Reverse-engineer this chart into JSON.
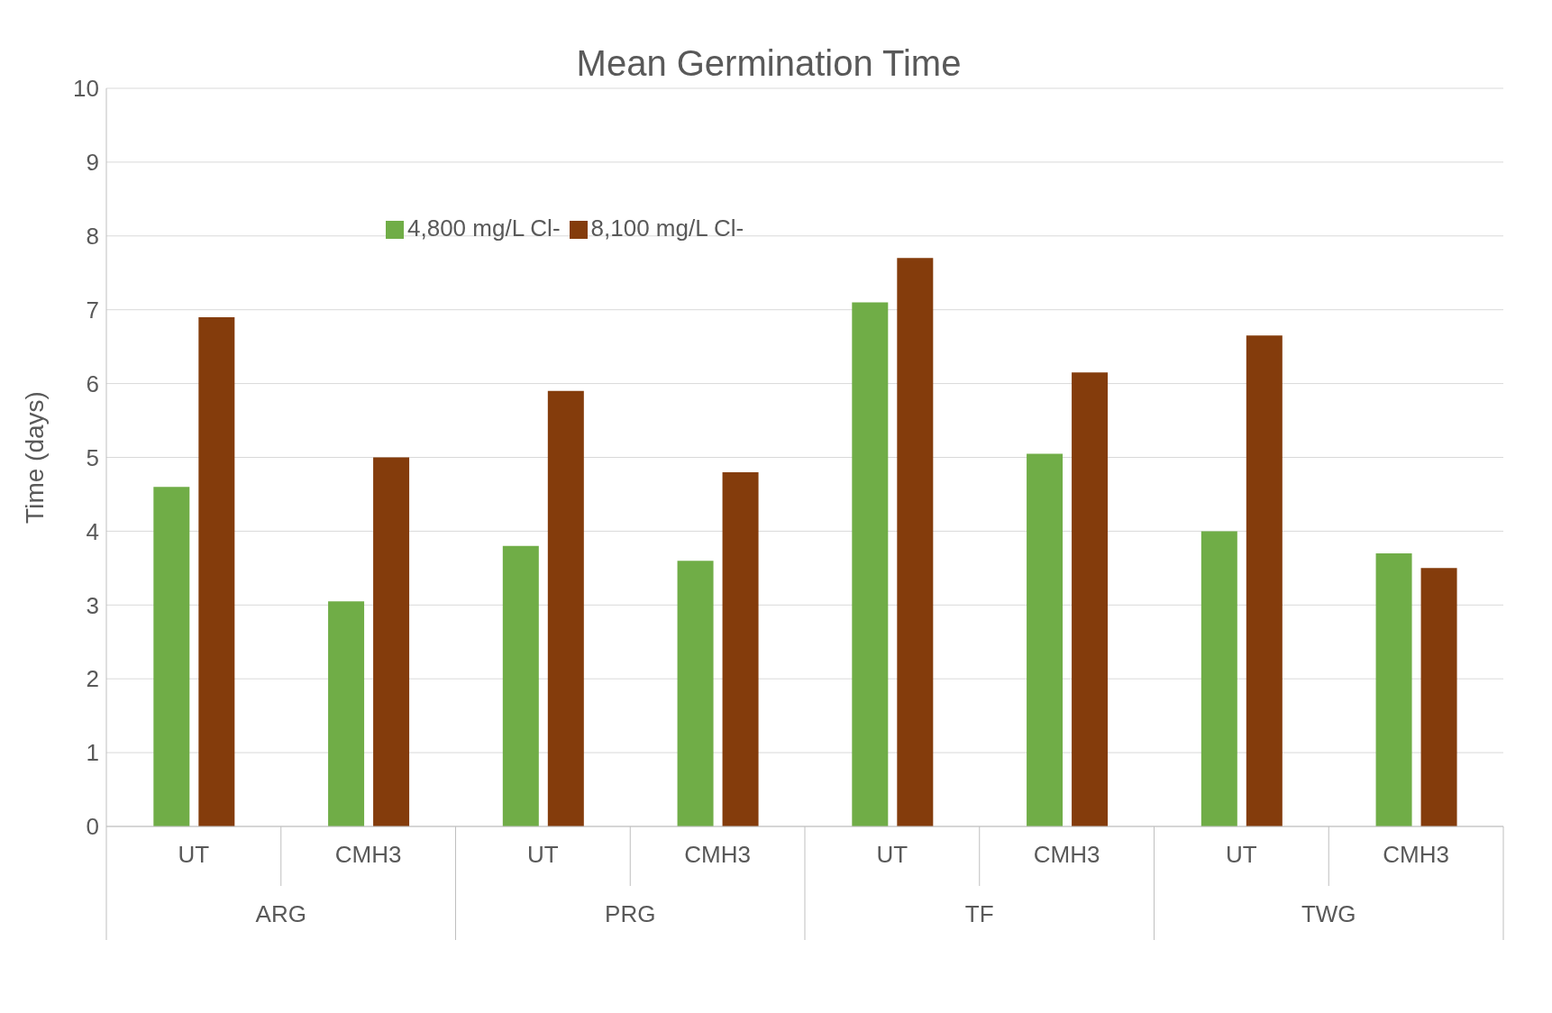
{
  "chart_data": {
    "type": "bar",
    "title": "Mean Germination Time",
    "ylabel": "Time (days)",
    "categories": [
      "UT",
      "CMH3",
      "UT",
      "CMH3",
      "UT",
      "CMH3",
      "UT",
      "CMH3"
    ],
    "series": [
      {
        "name": "4,800 mg/L Cl-",
        "color": "#70ad47",
        "values": [
          4.6,
          3.05,
          3.8,
          3.6,
          7.1,
          5.05,
          4.0,
          3.7
        ]
      },
      {
        "name": "8,100 mg/L Cl-",
        "color": "#843c0c",
        "values": [
          6.9,
          5.0,
          5.9,
          4.8,
          7.7,
          6.15,
          6.65,
          3.5
        ]
      }
    ],
    "annotations": [
      "ARG",
      "PRG",
      "TF",
      "TWG"
    ],
    "ylim": [
      0,
      10
    ],
    "yticks": [
      0,
      1,
      2,
      3,
      4,
      5,
      6,
      7,
      8,
      9,
      10
    ],
    "grid": "y",
    "legend": "top left"
  }
}
